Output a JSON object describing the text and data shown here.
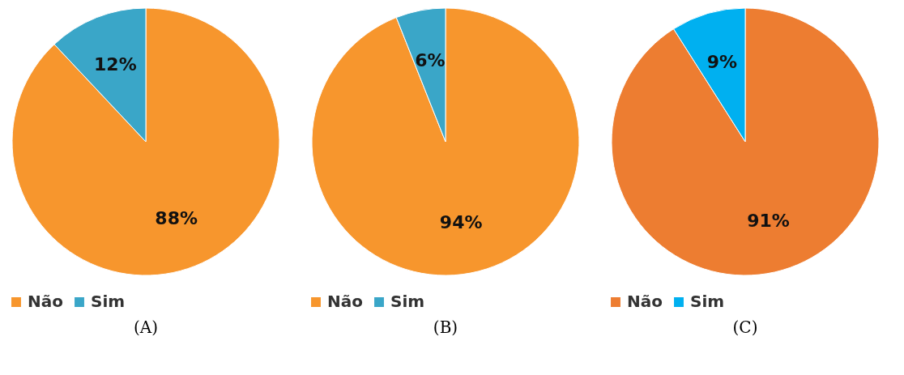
{
  "chart_data": [
    {
      "type": "pie",
      "title": "(A)",
      "categories": [
        "Não",
        "Sim"
      ],
      "values": [
        88,
        12
      ],
      "colors": [
        "#f7962d",
        "#3aa6c8"
      ],
      "value_labels": [
        "88%",
        "12%"
      ],
      "legend": "bottom"
    },
    {
      "type": "pie",
      "title": "(B)",
      "categories": [
        "Não",
        "Sim"
      ],
      "values": [
        94,
        6
      ],
      "colors": [
        "#f7962d",
        "#3aa6c8"
      ],
      "value_labels": [
        "94%",
        "6%"
      ],
      "legend": "bottom"
    },
    {
      "type": "pie",
      "title": "(C)",
      "categories": [
        "Não",
        "Sim"
      ],
      "values": [
        91,
        9
      ],
      "colors": [
        "#ed7d31",
        "#00b0f0"
      ],
      "value_labels": [
        "91%",
        "9%"
      ],
      "legend": "bottom"
    }
  ]
}
